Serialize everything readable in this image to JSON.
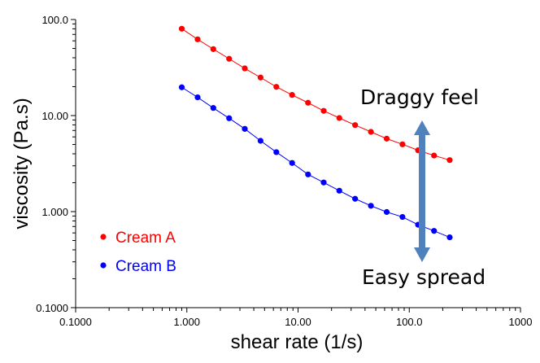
{
  "chart_data": {
    "type": "line",
    "xlabel": "shear rate (1/s)",
    "ylabel": "viscosity (Pa.s)",
    "xscale": "log",
    "yscale": "log",
    "xlim": [
      0.1,
      1000
    ],
    "ylim": [
      0.1,
      100
    ],
    "x_tick_labels": [
      "0.1000",
      "1.000",
      "10.00",
      "100.0",
      "1000"
    ],
    "y_tick_labels": [
      "0.1000",
      "1.000",
      "10.00",
      "100.0"
    ],
    "grid": false,
    "legend_position": "bottom-left",
    "x": [
      0.9,
      1.25,
      1.73,
      2.4,
      3.32,
      4.6,
      6.38,
      8.84,
      12.3,
      17.0,
      23.5,
      32.6,
      45.2,
      62.7,
      86.9,
      120,
      167,
      231
    ],
    "series": [
      {
        "name": "Cream A",
        "color": "#ff0000",
        "values": [
          80.2,
          62.2,
          49.2,
          39.0,
          31.0,
          24.9,
          19.9,
          16.4,
          13.6,
          11.2,
          9.43,
          7.96,
          6.77,
          5.75,
          5.02,
          4.35,
          3.84,
          3.44
        ]
      },
      {
        "name": "Cream B",
        "color": "#0000ff",
        "values": [
          19.7,
          15.5,
          12.0,
          9.38,
          7.27,
          5.46,
          4.16,
          3.21,
          2.44,
          2.01,
          1.65,
          1.36,
          1.15,
          0.99,
          0.88,
          0.73,
          0.63,
          0.54
        ]
      }
    ],
    "annotations": {
      "top": "Draggy feel",
      "bottom": "Easy spread",
      "arrow_color": "#4f81bd",
      "arrow_direction": "double-headed vertical"
    }
  }
}
